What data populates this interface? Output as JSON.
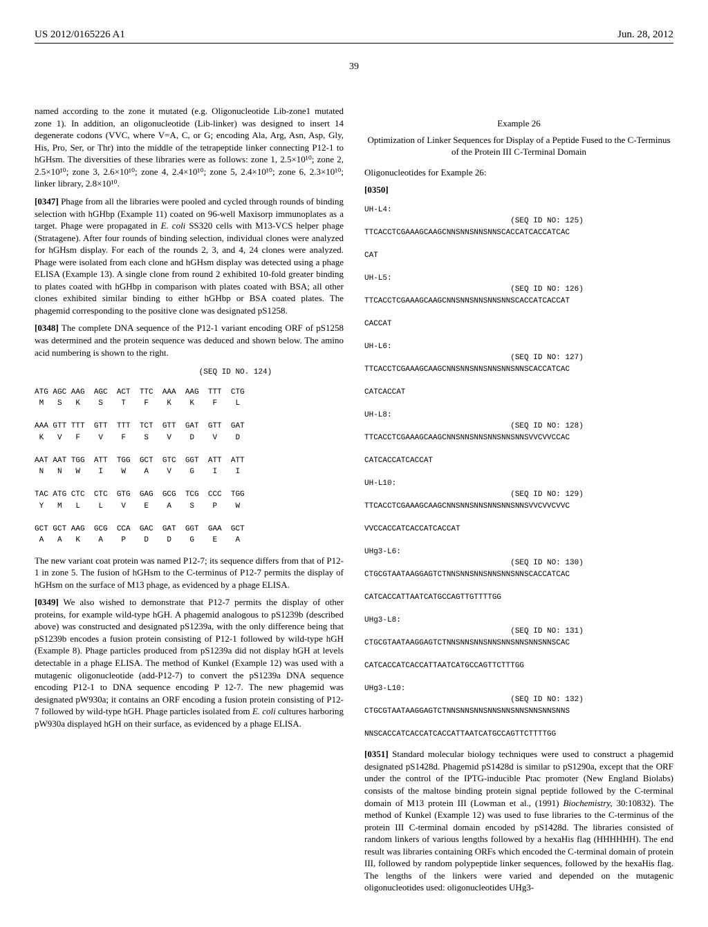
{
  "header": {
    "left": "US 2012/0165226 A1",
    "right": "Jun. 28, 2012"
  },
  "pageNumber": "39",
  "left": {
    "p1": "named according to the zone it mutated (e.g. Oligonucleotide Lib-zone1 mutated zone 1). In addition, an oligonucleotide (Lib-linker) was designed to insert 14 degenerate codons (VVC, where V=A, C, or G; encoding Ala, Arg, Asn, Asp, Gly, His, Pro, Ser, or Thr) into the middle of the tetrapeptide linker connecting P12-1 to hGHsm. The diversities of these libraries were as follows: zone 1, 2.5×10¹⁰; zone 2, 2.5×10¹⁰; zone 3, 2.6×10¹⁰; zone 4, 2.4×10¹⁰; zone 5, 2.4×10¹⁰; zone 6, 2.3×10¹⁰; linker library, 2.8×10¹⁰.",
    "p2num": "[0347]",
    "p2": "    Phage from all the libraries were pooled and cycled through rounds of binding selection with hGHbp (Example 11) coated on 96-well Maxisorp immunoplates as a target. Phage were propagated in ",
    "p2i": "E. coli",
    "p2b": " SS320 cells with M13-VCS helper phage (Stratagene). After four rounds of binding selection, individual clones were analyzed for hGHsm display. For each of the rounds 2, 3, and 4, 24 clones were analyzed. Phage were isolated from each clone and hGHsm display was detected using a phage ELISA (Example 13). A single clone from round 2 exhibited 10-fold greater binding to plates coated with hGHbp in comparison with plates coated with BSA; all other clones exhibited similar binding to either hGHbp or BSA coated plates. The phagemid corresponding to the positive clone was designated pS1258.",
    "p3num": "[0348]",
    "p3": "    The complete DNA sequence of the P12-1 variant encoding ORF of pS1258 was determined and the protein sequence was deduced and shown below. The amino acid numbering is shown to the right.",
    "seqHeader": "                                    (SEQ ID NO. 124)",
    "seq": "ATG AGC AAG  AGC  ACT  TTC  AAA  AAG  TTT  CTG\n M   S   K    S    T    F    K    K    F    L\n\nAAA GTT TTT  GTT  TTT  TCT  GTT  GAT  GTT  GAT\n K   V   F    V    F    S    V    D    V    D\n\nAAT AAT TGG  ATT  TGG  GCT  GTC  GGT  ATT  ATT\n N   N   W    I    W    A    V    G    I    I\n\nTAC ATG CTC  CTC  GTG  GAG  GCG  TCG  CCC  TGG\n Y   M   L    L    V    E    A    S    P    W\n\nGCT GCT AAG  GCG  CCA  GAC  GAT  GGT  GAA  GCT\n A   A   K    A    P    D    D    G    E    A",
    "p4": "The new variant coat protein was named P12-7; its sequence differs from that of P12-1 in zone 5. The fusion of hGHsm to the C-terminus of P12-7 permits the display of hGHsm on the surface of M13 phage, as evidenced by a phage ELISA.",
    "p5num": "[0349]",
    "p5": "    We also wished to demonstrate that P12-7 permits the display of other proteins, for example wild-type hGH. A phagemid analogous to pS1239b (described above) was constructed and designated pS1239a, with the only difference being that pS1239b encodes a fusion protein consisting of P12-1 followed by wild-type hGH (Example 8). Phage particles produced from pS1239a did not display hGH at levels detectable in a phage ELISA. The method of Kunkel (Example 12) was used with a mutagenic oligonucleotide (add-P12-7) to convert the pS1239a DNA sequence encoding P12-1 to DNA sequence encoding P 12-7. The new phagemid was designated pW930a; it contains an ORF encoding a fusion protein consisting of P12-7 followed by wild-type hGH. Phage particles isolated from ",
    "p5i": "E. coli",
    "p5b": " cultures harboring pW930a displayed hGH on their surface, as evidenced by a phage ELISA."
  },
  "right": {
    "exNum": "Example 26",
    "exTitle": "Optimization of Linker Sequences for Display of a Peptide Fused to the C-Terminus of the Protein III C-Terminal Domain",
    "oligoLabel": "Oligonucleotides for Example 26:",
    "p0num": "[0350]",
    "seqs": "UH-L4:\n                                (SEQ ID NO: 125)\nTTCACCTCGAAAGCAAGCNNSNNSNNSNNSCACCATCACCATCAC\n\nCAT\n\nUH-L5:\n                                (SEQ ID NO: 126)\nTTCACCTCGAAAGCAAGCNNSNNSNNSNNSNNSCACCATCACCAT\n\nCACCAT\n\nUH-L6:\n                                (SEQ ID NO: 127)\nTTCACCTCGAAAGCAAGCNNSNNSNNSNNSNNSNNSCACCATCAC\n\nCATCACCAT\n\nUH-L8:\n                                (SEQ ID NO: 128)\nTTCACCTCGAAAGCAAGCNNSNNSNNSNNSNNSNNSVVCVVCCAC\n\nCATCACCATCACCAT\n\nUH-L10:\n                                (SEQ ID NO: 129)\nTTCACCTCGAAAGCAAGCNNSNNSNNSNNSNNSNNSVVCVVCVVC\n\nVVCCACCATCACCATCACCAT\n\nUHg3-L6:\n                                (SEQ ID NO: 130)\nCTGCGTAATAAGGAGTCTNNSNNSNNSNNSNNSNNSCACCATCAC\n\nCATCACCATTAATCATGCCAGTTGTTTTGG\n\nUHg3-L8:\n                                (SEQ ID NO: 131)\nCTGCGTAATAAGGAGTCTNNSNNSNNSNNSNNSNNSNNSNNSCAC\n\nCATCACCATCACCATTAATCATGCCAGTTCTTTGG\n\nUHg3-L10:\n                                (SEQ ID NO: 132)\nCTGCGTAATAAGGAGTCTNNSNNSNNSNNSNNSNNSNNSNNSNNS\n\nNNSCACCATCACCATCACCATTAATCATGCCAGTTCTTTTGG",
    "p1num": "[0351]",
    "p1": "    Standard molecular biology techniques were used to construct a phagemid designated pS1428d. Phagemid pS1428d is similar to pS1290a, except that the ORF under the control of the IPTG-inducible Ptac promoter (New England Biolabs) consists of the maltose binding protein signal peptide followed by the C-terminal domain of M13 protein III (Lowman et al., (1991) ",
    "p1i": "Biochemistry,",
    "p1b": " 30:10832). The method of Kunkel (Example 12) was used to fuse libraries to the C-terminus of the protein III C-terminal domain encoded by pS1428d. The libraries consisted of random linkers of various lengths followed by a hexaHis flag (HHHHHH). The end result was libraries containing ORFs which encoded the C-terminal domain of protein III, followed by random polypeptide linker sequences, followed by the hexaHis flag. The lengths of the linkers were varied and depended on the mutagenic oligonucleotides used: oligonucleotides UHg3-"
  }
}
